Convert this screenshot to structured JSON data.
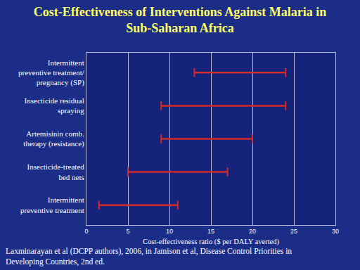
{
  "chart_data": {
    "type": "range",
    "title": "Cost-Effectiveness of Interventions Against Malaria in Sub-Saharan Africa",
    "x_label": "Cost-effectiveness ratio ($ per DALY averted)",
    "orientation": "horizontal",
    "categories": [
      "Intermittent preventive treatment/ pregnancy (SP)",
      "Insecticide residual spraying",
      "Artemisinin comb. therapy (resistance)",
      "Insecticide-treated bed nets",
      "Intermittent preventive treatment"
    ],
    "low": [
      13,
      9,
      9,
      5,
      1.5
    ],
    "high": [
      24,
      24,
      20,
      17,
      11
    ],
    "color": "#d42a2a",
    "xlim": [
      0,
      30
    ],
    "xticks": [
      0,
      5,
      10,
      15,
      20,
      25,
      30
    ],
    "grid": true,
    "annotations": [
      "Laxminarayan et al (DCPP authors), 2006, in Jamison et al, Disease Control Priorities in Developing Countries, 2nd ed."
    ]
  }
}
